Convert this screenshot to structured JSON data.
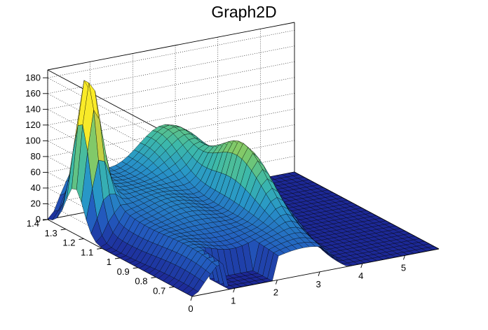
{
  "chart_data": {
    "type": "surface",
    "title": "Graph2D",
    "xlabel": "",
    "ylabel": "",
    "zlabel": "",
    "x_range": [
      0,
      5.8
    ],
    "y_range": [
      0.6,
      1.4
    ],
    "z_range": [
      0,
      190
    ],
    "x_ticks": [
      0,
      1,
      2,
      3,
      4,
      5
    ],
    "y_ticks": [
      0.7,
      0.8,
      0.9,
      1,
      1.1,
      1.2,
      1.3,
      1.4
    ],
    "z_ticks": [
      0,
      20,
      40,
      60,
      80,
      100,
      120,
      140,
      160,
      180
    ],
    "x_tick_labels": [
      "0",
      "1",
      "2",
      "3",
      "4",
      "5"
    ],
    "y_tick_labels": [
      "0.7",
      "0.8",
      "0.9",
      "1",
      "1.1",
      "1.2",
      "1.3",
      "1.4"
    ],
    "z_tick_labels": [
      "0",
      "20",
      "40",
      "60",
      "80",
      "100",
      "120",
      "140",
      "160",
      "180"
    ],
    "grid": true,
    "colormap": "viridis-like (dark blue to yellow)",
    "grid_resolution": [
      40,
      30
    ],
    "features": [
      {
        "name": "tall peak",
        "x": 0.3,
        "y": 1.25,
        "z": 185
      },
      {
        "name": "right ridge peak",
        "x": 2.9,
        "y": 1.0,
        "z": 130
      },
      {
        "name": "back ridge",
        "x": 2.8,
        "y": 1.35,
        "z": 70
      },
      {
        "name": "plateau level",
        "z": 55
      },
      {
        "name": "cutout x-range",
        "x": [
          0.75,
          2.0
        ]
      }
    ],
    "colors": {
      "low": "#1c3f99",
      "mid": "#3fb4b0",
      "high": "#f7ec2a",
      "mesh_line": "#000000"
    }
  }
}
